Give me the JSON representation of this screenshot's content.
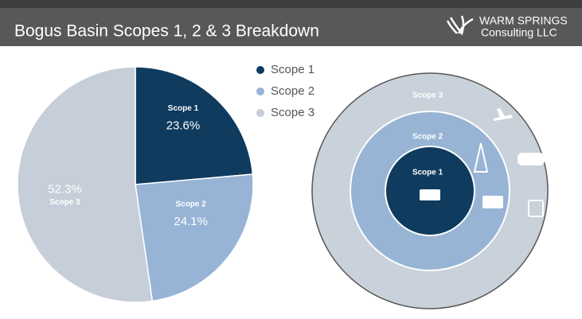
{
  "logo": {
    "name": "WARM SPRINGS",
    "subtitle": "Consulting LLC"
  },
  "chart_data": {
    "type": "pie",
    "title": "Bogus Basin Scopes 1, 2 & 3 Breakdown",
    "categories": [
      "Scope 1",
      "Scope 2",
      "Scope 3"
    ],
    "values": [
      23.6,
      24.1,
      52.3
    ],
    "value_labels": [
      "23.6%",
      "24.1%",
      "52.3%"
    ],
    "colors": [
      "#0f3b5f",
      "#97b4d6",
      "#c6ced9"
    ],
    "legend": "top-right"
  }
}
